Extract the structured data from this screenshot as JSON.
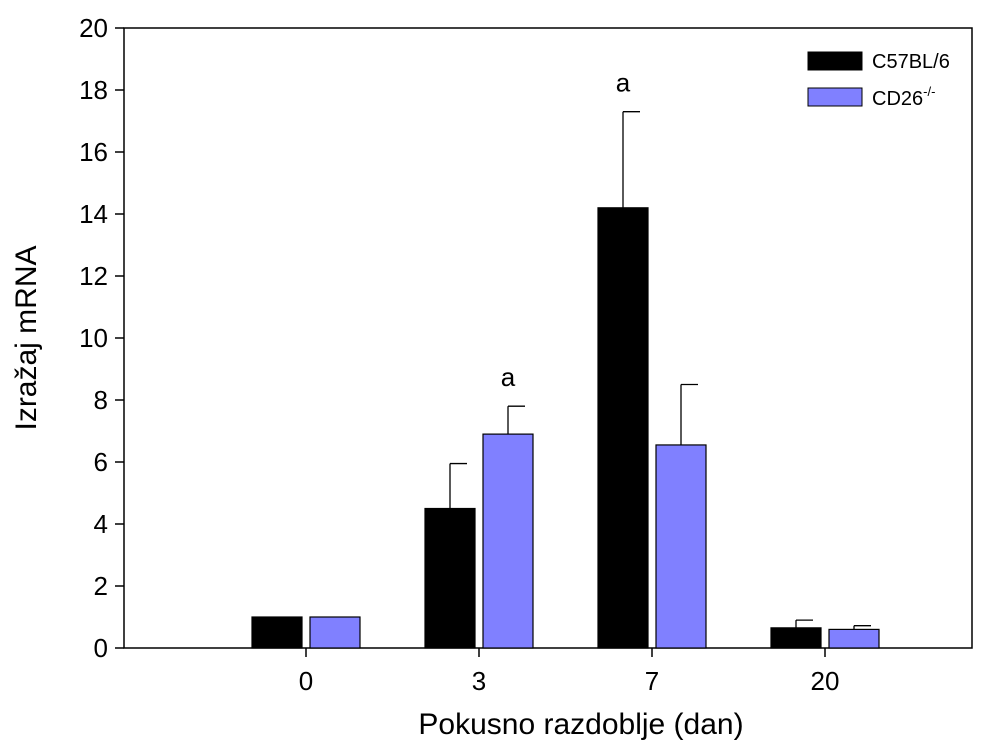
{
  "chart_data": {
    "type": "bar",
    "xlabel": "Pokusno razdoblje (dan)",
    "ylabel": "Izražaj mRNA",
    "ylim": [
      0,
      20
    ],
    "yticks": [
      0,
      2,
      4,
      6,
      8,
      10,
      12,
      14,
      16,
      18,
      20
    ],
    "categories": [
      "0",
      "3",
      "7",
      "20"
    ],
    "series": [
      {
        "name": "C57BL/6",
        "color": "#000000",
        "values": [
          1.0,
          4.5,
          14.2,
          0.65
        ],
        "errors": [
          0,
          1.45,
          3.1,
          0.25
        ]
      },
      {
        "name": "CD26",
        "name_sup": "-/-",
        "color": "#8080ff",
        "values": [
          1.0,
          6.9,
          6.55,
          0.6
        ],
        "errors": [
          0,
          0.9,
          1.95,
          0.12
        ]
      }
    ],
    "annotations": [
      {
        "text": "a",
        "category": "3",
        "series": 1
      },
      {
        "text": "a",
        "category": "7",
        "series": 0
      }
    ],
    "legend": "top-right",
    "grid": false
  }
}
